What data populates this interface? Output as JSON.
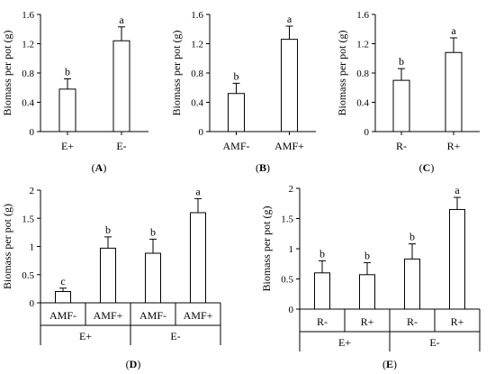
{
  "chart_data": [
    {
      "type": "bar",
      "ylabel": "Biomass per pot (g)",
      "ylim": [
        0,
        1.6
      ],
      "yticks": [
        "0",
        "0.4",
        "0.8",
        "1.2",
        "1.6"
      ],
      "categories": [
        "E+",
        "E-"
      ],
      "values": [
        0.58,
        1.24
      ],
      "errors": [
        0.14,
        0.19
      ],
      "letters": [
        "b",
        "a"
      ],
      "panel_label": "A"
    },
    {
      "type": "bar",
      "ylabel": "Biomass per pot (g)",
      "ylim": [
        0,
        1.6
      ],
      "yticks": [
        "0",
        "0.4",
        "0.8",
        "1.2",
        "1.6"
      ],
      "categories": [
        "AMF-",
        "AMF+"
      ],
      "values": [
        0.52,
        1.26
      ],
      "errors": [
        0.14,
        0.18
      ],
      "letters": [
        "b",
        "a"
      ],
      "panel_label": "B"
    },
    {
      "type": "bar",
      "ylabel": "Biomass per pot (g)",
      "ylim": [
        0,
        1.6
      ],
      "yticks": [
        "0",
        "0.4",
        "0.8",
        "1.2",
        "1.6"
      ],
      "categories": [
        "R-",
        "R+"
      ],
      "values": [
        0.7,
        1.08
      ],
      "errors": [
        0.16,
        0.2
      ],
      "letters": [
        "b",
        "a"
      ],
      "panel_label": "C"
    },
    {
      "type": "bar",
      "ylabel": "Biomass per pot (g)",
      "ylim": [
        0,
        2
      ],
      "yticks": [
        "0",
        "0.5",
        "1",
        "1.5",
        "2"
      ],
      "categories": [
        "AMF-",
        "AMF+",
        "AMF-",
        "AMF+"
      ],
      "groups": [
        "E+",
        "E-"
      ],
      "values": [
        0.2,
        0.97,
        0.88,
        1.6
      ],
      "errors": [
        0.06,
        0.2,
        0.25,
        0.25
      ],
      "letters": [
        "c",
        "b",
        "b",
        "a"
      ],
      "panel_label": "D"
    },
    {
      "type": "bar",
      "ylabel": "Biomass per pot (g)",
      "ylim": [
        0,
        2
      ],
      "yticks": [
        "0",
        "0.5",
        "1",
        "1.5",
        "2"
      ],
      "categories": [
        "R-",
        "R+",
        "R-",
        "R+"
      ],
      "groups": [
        "E+",
        "E-"
      ],
      "values": [
        0.6,
        0.57,
        0.83,
        1.65
      ],
      "errors": [
        0.2,
        0.2,
        0.25,
        0.2
      ],
      "letters": [
        "b",
        "b",
        "b",
        "a"
      ],
      "panel_label": "E"
    }
  ]
}
